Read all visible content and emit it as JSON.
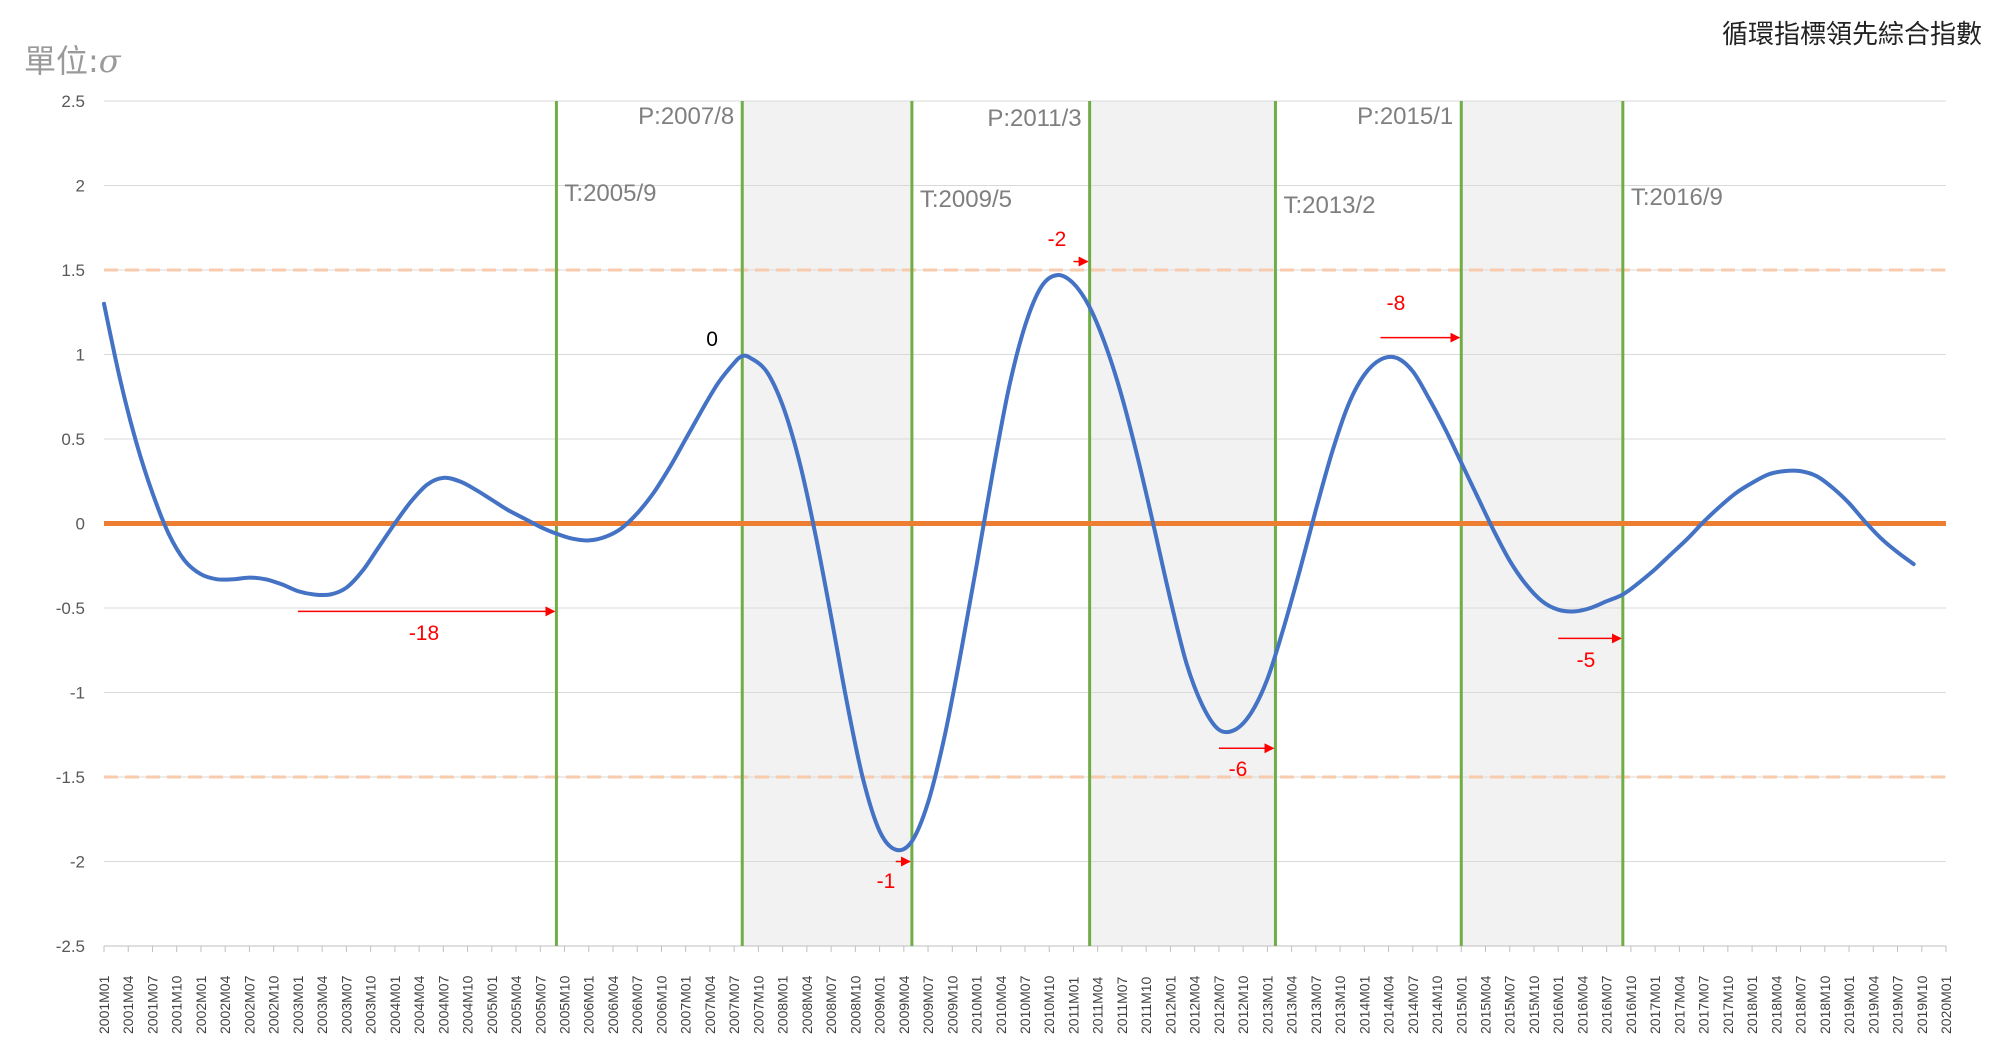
{
  "header": {
    "unit_label": "單位:",
    "unit_symbol": "σ",
    "title": "循環指標領先綜合指數"
  },
  "chart_data": {
    "type": "line",
    "title": "循環指標領先綜合指數",
    "ylabel": "單位:σ",
    "ylim": [
      -2.5,
      2.5
    ],
    "yticks": [
      "2.5",
      "2",
      "1.5",
      "1",
      "0.5",
      "0",
      "-0.5",
      "-1",
      "-1.5",
      "-2",
      "-2.5"
    ],
    "x_start": "2001M01",
    "x_end": "2020M01",
    "x_tick_every_months": 3,
    "grid": true,
    "colors": {
      "series": "#4472c4",
      "zero_line": "#ed7d31",
      "band_line": "#f8cbad",
      "turning_line": "#70ad47",
      "shade": "#f2f2f2",
      "arrow": "#ff0000"
    },
    "reference_lines": [
      1.5,
      -1.5
    ],
    "shaded_periods": [
      [
        "2007M08",
        "2009M05"
      ],
      [
        "2011M03",
        "2013M02"
      ],
      [
        "2015M01",
        "2016M09"
      ]
    ],
    "turning_points": [
      {
        "month": "2005M09",
        "label": "T:2005/9"
      },
      {
        "month": "2007M08",
        "label": "P:2007/8"
      },
      {
        "month": "2009M05",
        "label": "T:2009/5"
      },
      {
        "month": "2011M03",
        "label": "P:2011/3"
      },
      {
        "month": "2013M02",
        "label": "T:2013/2"
      },
      {
        "month": "2015M01",
        "label": "P:2015/1"
      },
      {
        "month": "2016M09",
        "label": "T:2016/9"
      }
    ],
    "series": [
      {
        "values": [
          [
            "2001M01",
            1.3
          ],
          [
            "2001M03",
            0.85
          ],
          [
            "2001M05",
            0.48
          ],
          [
            "2001M07",
            0.18
          ],
          [
            "2001M09",
            -0.06
          ],
          [
            "2001M11",
            -0.22
          ],
          [
            "2002M01",
            -0.3
          ],
          [
            "2002M03",
            -0.33
          ],
          [
            "2002M05",
            -0.33
          ],
          [
            "2002M07",
            -0.32
          ],
          [
            "2002M09",
            -0.33
          ],
          [
            "2002M11",
            -0.36
          ],
          [
            "2003M01",
            -0.4
          ],
          [
            "2003M03",
            -0.42
          ],
          [
            "2003M05",
            -0.42
          ],
          [
            "2003M07",
            -0.38
          ],
          [
            "2003M09",
            -0.28
          ],
          [
            "2003M11",
            -0.14
          ],
          [
            "2004M01",
            0.0
          ],
          [
            "2004M03",
            0.13
          ],
          [
            "2004M05",
            0.23
          ],
          [
            "2004M07",
            0.27
          ],
          [
            "2004M09",
            0.25
          ],
          [
            "2004M11",
            0.2
          ],
          [
            "2005M01",
            0.14
          ],
          [
            "2005M03",
            0.08
          ],
          [
            "2005M05",
            0.03
          ],
          [
            "2005M07",
            -0.02
          ],
          [
            "2005M09",
            -0.06
          ],
          [
            "2005M11",
            -0.09
          ],
          [
            "2006M01",
            -0.1
          ],
          [
            "2006M03",
            -0.08
          ],
          [
            "2006M05",
            -0.03
          ],
          [
            "2006M07",
            0.06
          ],
          [
            "2006M09",
            0.18
          ],
          [
            "2006M11",
            0.33
          ],
          [
            "2007M01",
            0.5
          ],
          [
            "2007M03",
            0.67
          ],
          [
            "2007M05",
            0.83
          ],
          [
            "2007M07",
            0.95
          ],
          [
            "2007M08",
            0.99
          ],
          [
            "2007M09",
            0.98
          ],
          [
            "2007M11",
            0.9
          ],
          [
            "2008M01",
            0.7
          ],
          [
            "2008M03",
            0.38
          ],
          [
            "2008M05",
            -0.05
          ],
          [
            "2008M07",
            -0.55
          ],
          [
            "2008M09",
            -1.07
          ],
          [
            "2008M11",
            -1.52
          ],
          [
            "2009M01",
            -1.82
          ],
          [
            "2009M03",
            -1.93
          ],
          [
            "2009M05",
            -1.88
          ],
          [
            "2009M07",
            -1.65
          ],
          [
            "2009M09",
            -1.27
          ],
          [
            "2009M11",
            -0.78
          ],
          [
            "2010M01",
            -0.25
          ],
          [
            "2010M03",
            0.3
          ],
          [
            "2010M05",
            0.8
          ],
          [
            "2010M07",
            1.17
          ],
          [
            "2010M09",
            1.4
          ],
          [
            "2010M11",
            1.47
          ],
          [
            "2011M01",
            1.42
          ],
          [
            "2011M03",
            1.28
          ],
          [
            "2011M05",
            1.05
          ],
          [
            "2011M07",
            0.75
          ],
          [
            "2011M09",
            0.38
          ],
          [
            "2011M11",
            -0.03
          ],
          [
            "2012M01",
            -0.45
          ],
          [
            "2012M03",
            -0.83
          ],
          [
            "2012M05",
            -1.08
          ],
          [
            "2012M07",
            -1.22
          ],
          [
            "2012M09",
            -1.22
          ],
          [
            "2012M11",
            -1.12
          ],
          [
            "2013M01",
            -0.92
          ],
          [
            "2013M03",
            -0.62
          ],
          [
            "2013M05",
            -0.28
          ],
          [
            "2013M07",
            0.08
          ],
          [
            "2013M09",
            0.42
          ],
          [
            "2013M11",
            0.7
          ],
          [
            "2014M01",
            0.88
          ],
          [
            "2014M03",
            0.97
          ],
          [
            "2014M05",
            0.98
          ],
          [
            "2014M07",
            0.9
          ],
          [
            "2014M09",
            0.74
          ],
          [
            "2014M11",
            0.56
          ],
          [
            "2015M01",
            0.36
          ],
          [
            "2015M03",
            0.16
          ],
          [
            "2015M05",
            -0.04
          ],
          [
            "2015M07",
            -0.22
          ],
          [
            "2015M09",
            -0.36
          ],
          [
            "2015M11",
            -0.46
          ],
          [
            "2016M01",
            -0.51
          ],
          [
            "2016M03",
            -0.52
          ],
          [
            "2016M05",
            -0.5
          ],
          [
            "2016M07",
            -0.46
          ],
          [
            "2016M09",
            -0.42
          ],
          [
            "2016M11",
            -0.35
          ],
          [
            "2017M01",
            -0.27
          ],
          [
            "2017M03",
            -0.18
          ],
          [
            "2017M05",
            -0.09
          ],
          [
            "2017M07",
            0.01
          ],
          [
            "2017M09",
            0.1
          ],
          [
            "2017M11",
            0.18
          ],
          [
            "2018M01",
            0.24
          ],
          [
            "2018M03",
            0.29
          ],
          [
            "2018M05",
            0.31
          ],
          [
            "2018M07",
            0.31
          ],
          [
            "2018M09",
            0.28
          ],
          [
            "2018M11",
            0.21
          ],
          [
            "2019M01",
            0.12
          ],
          [
            "2019M03",
            0.01
          ],
          [
            "2019M05",
            -0.09
          ],
          [
            "2019M07",
            -0.17
          ],
          [
            "2019M09",
            -0.24
          ]
        ]
      }
    ],
    "lead_annotations": [
      {
        "label": "-18",
        "from": "2003M01",
        "to": "2005M09",
        "y": -0.52
      },
      {
        "label": "0",
        "at": "2007M06",
        "y": 1.09
      },
      {
        "label": "-1",
        "from": "2009M03",
        "to": "2009M05",
        "y": -2.0
      },
      {
        "label": "-2",
        "from": "2011M01",
        "to": "2011M03",
        "y": 1.55
      },
      {
        "label": "-6",
        "from": "2012M07",
        "to": "2013M02",
        "y": -1.33
      },
      {
        "label": "-8",
        "from": "2014M03",
        "to": "2015M01",
        "y": 1.1
      },
      {
        "label": "-5",
        "from": "2016M01",
        "to": "2016M09",
        "y": -0.68
      }
    ]
  }
}
